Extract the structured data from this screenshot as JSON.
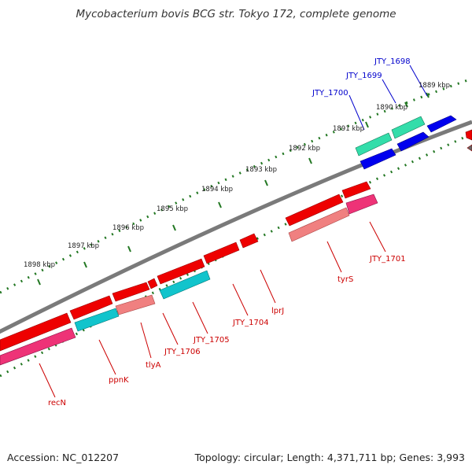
{
  "title": "Mycobacterium bovis BCG str. Tokyo 172, complete genome",
  "footer": {
    "accession": "Accession: NC_012207",
    "info": "Topology: circular; Length: 4,371,711 bp; Genes: 3,993"
  },
  "scale_labels": [
    "1889 kbp",
    "1890 kbp",
    "1891 kbp",
    "1892 kbp",
    "1893 kbp",
    "1894 kbp",
    "1895 kbp",
    "1896 kbp",
    "1897 kbp",
    "1898 kbp"
  ],
  "gene_labels": [
    {
      "text": "JTY_1698",
      "color": "#0000cc"
    },
    {
      "text": "JTY_1699",
      "color": "#0000cc"
    },
    {
      "text": "JTY_1700",
      "color": "#0000cc"
    },
    {
      "text": "JTY_1701",
      "color": "#cc0000"
    },
    {
      "text": "tyrS",
      "color": "#cc0000"
    },
    {
      "text": "lprJ",
      "color": "#cc0000"
    },
    {
      "text": "JTY_1704",
      "color": "#cc0000"
    },
    {
      "text": "JTY_1705",
      "color": "#cc0000"
    },
    {
      "text": "JTY_1706",
      "color": "#cc0000"
    },
    {
      "text": "tlyA",
      "color": "#cc0000"
    },
    {
      "text": "ppnK",
      "color": "#cc0000"
    },
    {
      "text": "recN",
      "color": "#cc0000"
    }
  ],
  "colors": {
    "backbone": "#7a7a7a",
    "forward_cds": "#ee0000",
    "reverse_cds": "#0000ee",
    "rna_forward": "#ee3377",
    "rna_reverse": "#33ddaa",
    "pseudo_forward": "#f08080",
    "cyan_feature": "#11c4cc",
    "dotted_scale": "#227722"
  }
}
